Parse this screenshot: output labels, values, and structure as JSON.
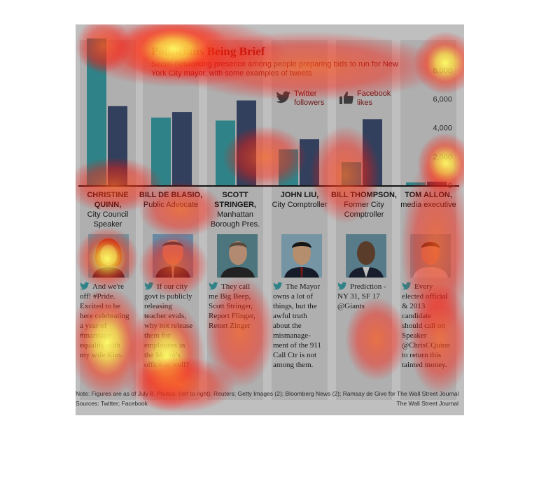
{
  "title": "Politicians Being Brief",
  "subtitle": "Social-networking presence among people preparing bids to run for New York City mayor, with some examples of tweets",
  "legend": {
    "twitter": "Twitter followers",
    "facebook": "Facebook likes"
  },
  "colors": {
    "twitter": "#3aa0a6",
    "facebook": "#3f4f72",
    "title": "#8b1a1a"
  },
  "chart_data": {
    "type": "bar",
    "categories": [
      "CHRISTINE QUINN",
      "BILL DE BLASIO",
      "SCOTT STRINGER",
      "JOHN LIU",
      "BILL THOMPSON",
      "TOM ALLON"
    ],
    "series": [
      {
        "name": "Twitter followers",
        "values": [
          10200,
          4700,
          4500,
          2500,
          1600,
          200
        ]
      },
      {
        "name": "Facebook likes",
        "values": [
          5500,
          5100,
          5900,
          3200,
          4600,
          250
        ]
      }
    ],
    "yticks": [
      0,
      2000,
      4000,
      6000,
      8000
    ],
    "ytick_labels": [
      "0",
      "2,000",
      "4,000",
      "6,000",
      "8,000"
    ],
    "ylim": [
      0,
      10500
    ],
    "title": "Politicians Being Brief"
  },
  "politicians": [
    {
      "name_bold": "CHRISTINE QUINN,",
      "role": "City Council Speaker",
      "tweet": "And we're off! #Pride. Excited to be here celebrating a year of #marriage equality with my wife Kim."
    },
    {
      "name_bold": "BILL DE BLASIO,",
      "role": "Public Advocate",
      "tweet": "If our city govt is publicly releasing teacher evals, why not release them for employees in the Mayor's office as well?"
    },
    {
      "name_bold": "SCOTT STRINGER,",
      "role": "Manhattan Borough Pres.",
      "tweet": "They call me Big Beep, Scott Stringer, Report Flinger, Retort Zinger"
    },
    {
      "name_bold": "JOHN LIU,",
      "role": "City Comptroller",
      "tweet": "The Mayor owns a lot of things, but the awful truth about the mismanage-ment of the 911 Call Ctr is not among them."
    },
    {
      "name_bold": "BILL THOMPSON,",
      "role": "Former City Comptroller",
      "tweet": "Prediction - NY 31, SF 17 @Giants"
    },
    {
      "name_bold": "TOM ALLON,",
      "role": "media executive",
      "tweet": "Every elected official & 2013 candidate should call on Speaker @ChrisCQuinn to return this tainted money."
    }
  ],
  "note": "Note: Figures are as of July 8.    Photos: (left to right); Reuters; Getty Images (2); Bloomberg News (2); Ramsay de Give for The Wall Street Journal",
  "sources": "Sources: Twitter; Facebook",
  "credit": "The Wall Street Journal"
}
